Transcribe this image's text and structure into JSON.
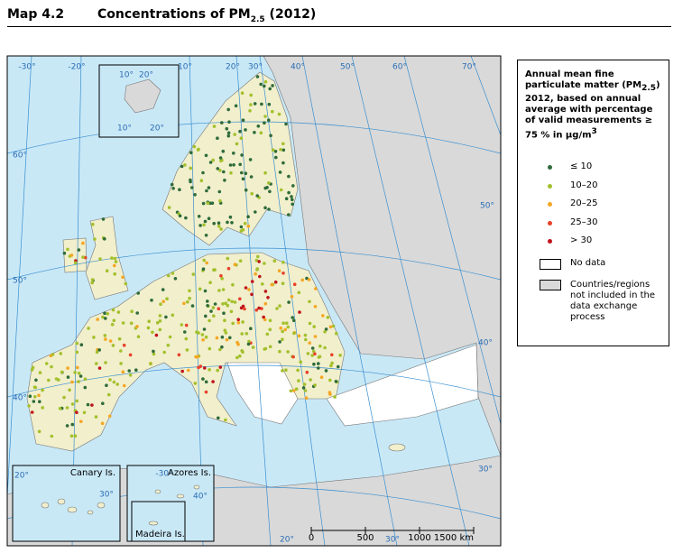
{
  "header": {
    "map_number": "Map 4.2",
    "title": "Concentrations of PM",
    "title_sub": "2.5",
    "title_end": " (2012)"
  },
  "legend": {
    "title_start": "Annual mean fine particulate matter (PM",
    "title_sub": "2.5",
    "title_mid": ") 2012, based on annual average with percentage of valid measurements ≥ 75 % in µg/m",
    "title_sup": "3",
    "classes": [
      {
        "label": "≤ 10",
        "color": "#2e6b3a"
      },
      {
        "label": "10–20",
        "color": "#a3c02c"
      },
      {
        "label": "20–25",
        "color": "#f5a623"
      },
      {
        "label": "25–30",
        "color": "#e8402a"
      },
      {
        "label": "> 30",
        "color": "#c0141c"
      }
    ],
    "no_data": "No data",
    "not_included": "Countries/regions not included in the data exchange process"
  },
  "graticule_labels": [
    "-30°",
    "-20°",
    "10°",
    "20°",
    "30°",
    "40°",
    "50°",
    "60°",
    "70°",
    "60°",
    "50°",
    "40°",
    "50°",
    "40°",
    "30°",
    "20°",
    "30°"
  ],
  "insets": {
    "svalbard_labels": [
      "10°",
      "20°",
      "10°",
      "20°"
    ],
    "canary": "Canary Is.",
    "canary_labels": [
      "20°",
      "30°"
    ],
    "azores": "Azores Is.",
    "azores_labels": [
      "-30°",
      "40°"
    ],
    "madeira": "Madeira Is."
  },
  "scale_bar": [
    "0",
    "500",
    "1000",
    "1500 km"
  ]
}
